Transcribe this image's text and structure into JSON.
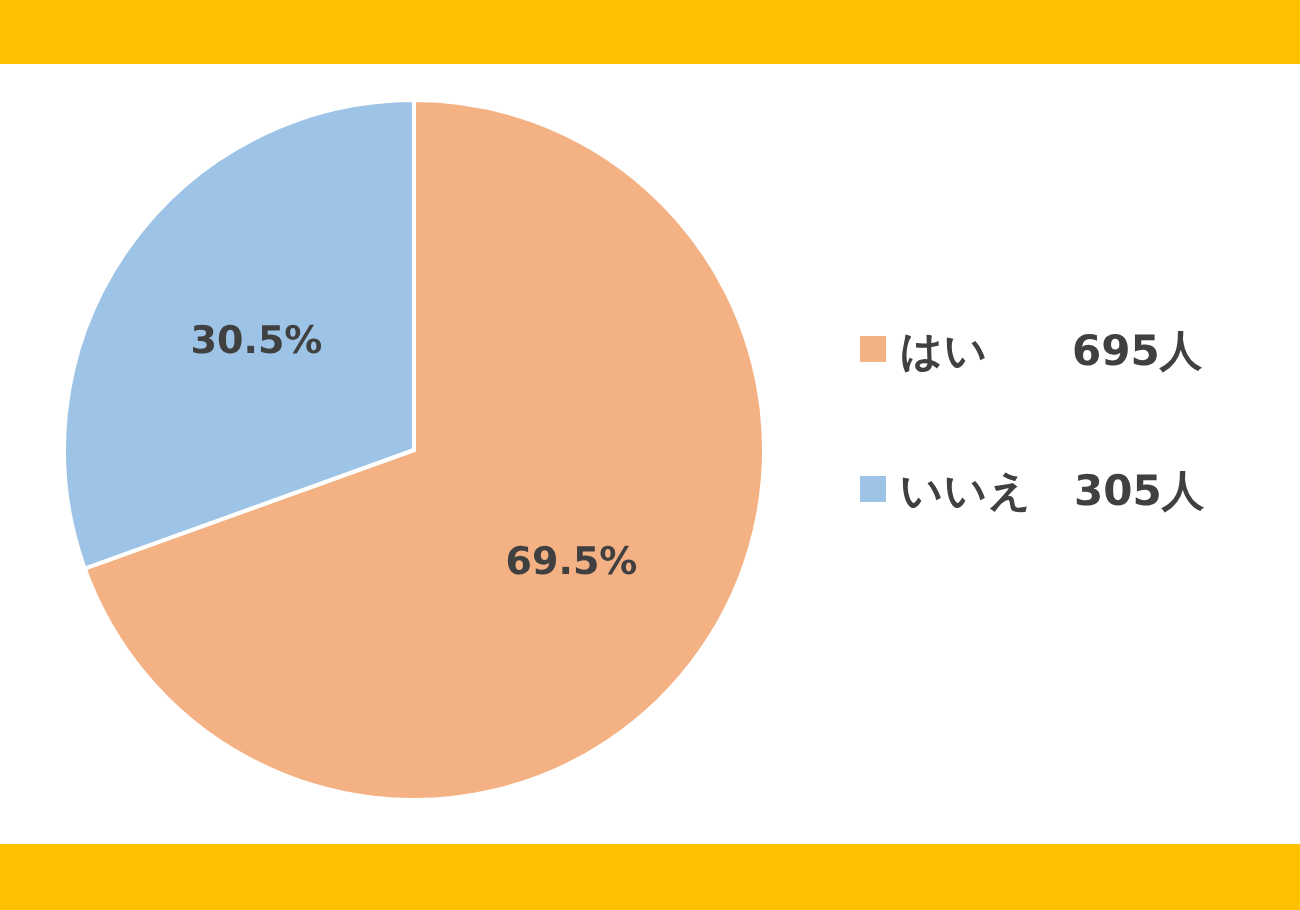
{
  "chart_data": {
    "type": "pie",
    "categories": [
      "はい　　695人",
      "いいえ　305人"
    ],
    "values": [
      69.5,
      30.5
    ],
    "value_labels": [
      "69.5%",
      "30.5%"
    ],
    "colors": [
      "#f4b183",
      "#9dc3e6"
    ],
    "legend": "right"
  }
}
